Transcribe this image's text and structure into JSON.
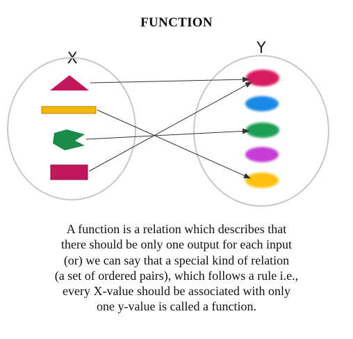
{
  "title": "FUNCTION",
  "diagram": {
    "domain_label": "X",
    "codomain_label": "Y",
    "domain_items": [
      {
        "shape": "triangle",
        "color": "#c2185b"
      },
      {
        "shape": "bar",
        "color": "#f5b800"
      },
      {
        "shape": "pentagon-notched",
        "color": "#1b8a4a"
      },
      {
        "shape": "rectangle",
        "color": "#c2185b"
      }
    ],
    "codomain_items": [
      {
        "shape": "dot",
        "color": "#d81b60"
      },
      {
        "shape": "dot",
        "color": "#1e88e5"
      },
      {
        "shape": "dot",
        "color": "#1e9e55"
      },
      {
        "shape": "dot",
        "color": "#c53dd6"
      },
      {
        "shape": "dot",
        "color": "#ffc107"
      }
    ],
    "mapping": [
      {
        "from": 0,
        "to": 0
      },
      {
        "from": 1,
        "to": 4
      },
      {
        "from": 2,
        "to": 2
      },
      {
        "from": 3,
        "to": 0
      }
    ]
  },
  "description_lines": [
    "A function is a relation which describes that",
    "there should be only one output for each input",
    "(or) we can say that a special kind of relation",
    "(a set of ordered pairs), which follows a rule i.e.,",
    "every X-value should be associated with only",
    "one y-value is called a function."
  ]
}
